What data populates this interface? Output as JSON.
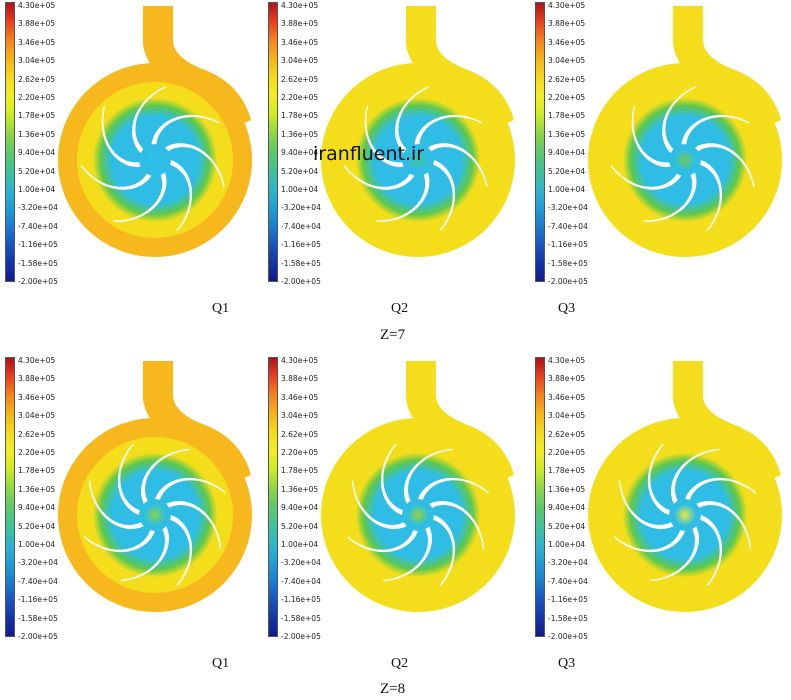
{
  "figure": {
    "colorbar_ticks": [
      "4.30e+05",
      "3.88e+05",
      "3.46e+05",
      "3.04e+05",
      "2.62e+05",
      "2.20e+05",
      "1.78e+05",
      "1.36e+05",
      "9.40e+04",
      "5.20e+04",
      "1.00e+04",
      "-3.20e+04",
      "-7.40e+04",
      "-1.16e+05",
      "-1.58e+05",
      "-2.00e+05"
    ],
    "colorbar_colors": [
      "#b0101a",
      "#e8401c",
      "#f4821c",
      "#f6b417",
      "#f3d91c",
      "#f2ee22",
      "#ccec24",
      "#8fd843",
      "#5cca68",
      "#40c494",
      "#2fb6c9",
      "#1f9fd6",
      "#1a7fd0",
      "#1857c0",
      "#1435a8",
      "#101a8c"
    ],
    "watermark": "iranfluent.ir",
    "rows": [
      {
        "label": "Z=7",
        "panels": [
          {
            "case": "Q1",
            "blades": 7,
            "hub_color": "#2cc0ec",
            "volute_color": "#f7b81e"
          },
          {
            "case": "Q2",
            "blades": 7,
            "hub_color": "#43c2a0",
            "volute_color": "#f4de1c"
          },
          {
            "case": "Q3",
            "blades": 7,
            "hub_color": "#6ccc58",
            "volute_color": "#f4de1c"
          }
        ]
      },
      {
        "label": "Z=8",
        "panels": [
          {
            "case": "Q1",
            "blades": 8,
            "hub_color": "#86d448",
            "volute_color": "#f7b81e"
          },
          {
            "case": "Q2",
            "blades": 8,
            "hub_color": "#8fd43c",
            "volute_color": "#f4de1c"
          },
          {
            "case": "Q3",
            "blades": 8,
            "hub_color": "#e6ea44",
            "volute_color": "#f4de1c"
          }
        ]
      }
    ],
    "palette": {
      "volute_yellow": "#f4de1c",
      "impeller_cyan": "#2fbde6",
      "transition_green": "#5ec84c",
      "blade_white": "#ffffff"
    }
  }
}
